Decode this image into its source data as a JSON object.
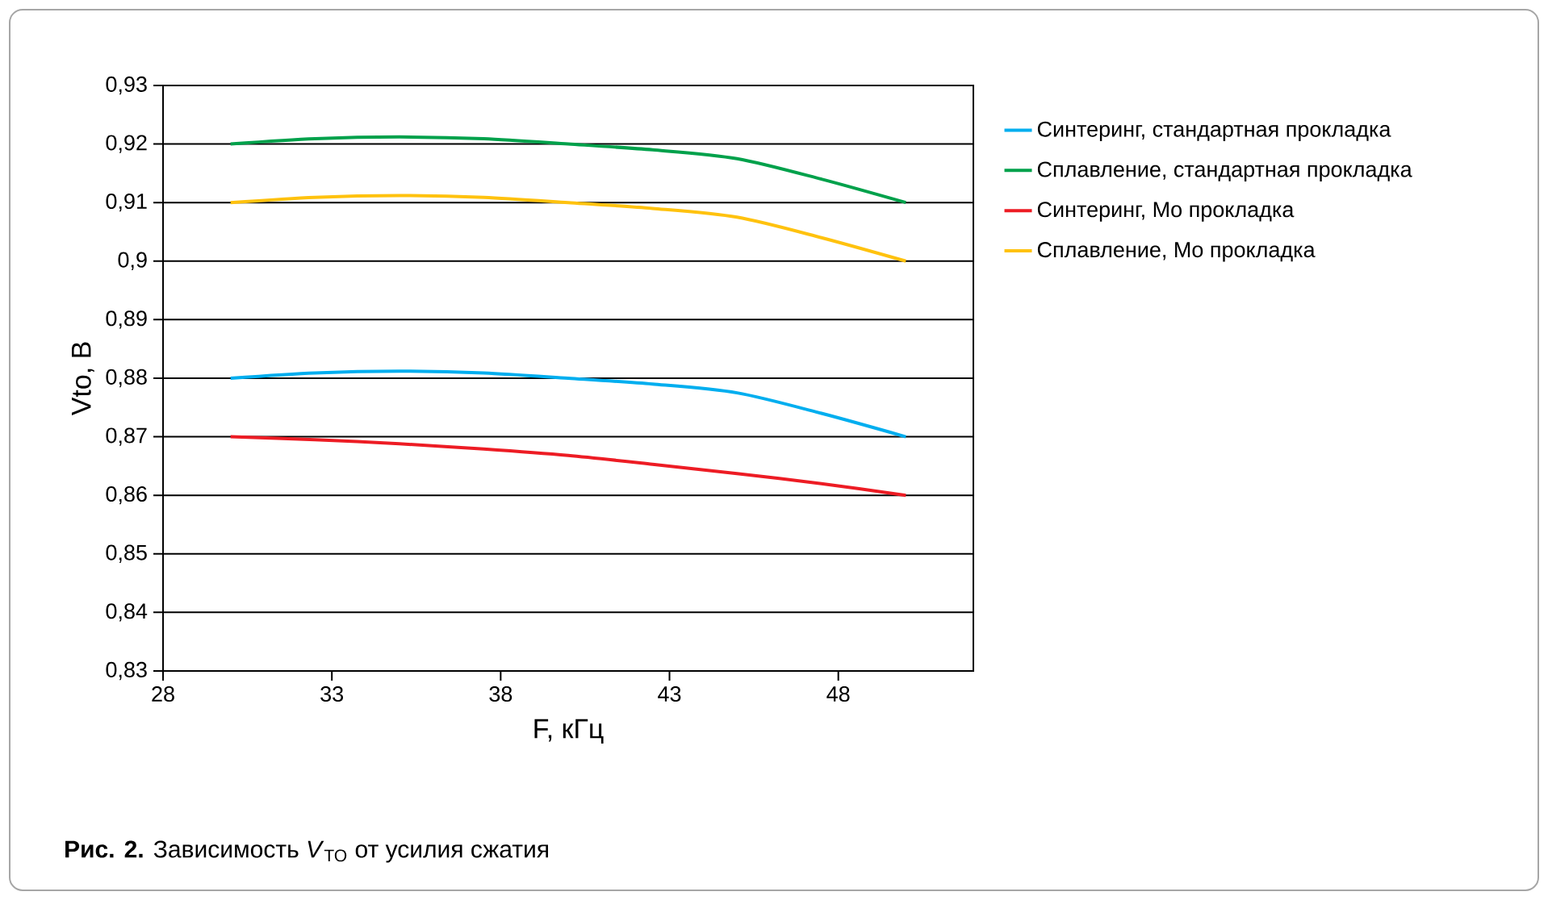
{
  "chart_data": {
    "type": "line",
    "xlabel": "F, кГц",
    "ylabel": "Vto, В",
    "annotations": [
      "**Рис. 2.** Зависимость *V*$_{TO}$ от усилия сжатия"
    ],
    "x": [
      30,
      32.5,
      35,
      37.5,
      40,
      42.5,
      45,
      47.5,
      50
    ],
    "series": [
      {
        "name": "Синтеринг, стандартная прокладка",
        "color": "#00aeef",
        "values": [
          0.88,
          0.8809,
          0.8812,
          0.8809,
          0.88,
          0.879,
          0.8775,
          0.874,
          0.87
        ]
      },
      {
        "name": "Сплавление, стандартная прокладка",
        "color": "#00a14b",
        "values": [
          0.92,
          0.9209,
          0.9212,
          0.9209,
          0.92,
          0.919,
          0.9175,
          0.914,
          0.91
        ]
      },
      {
        "name": "Синтеринг, Mo прокладка",
        "color": "#ed1c24",
        "values": [
          0.87,
          0.8695,
          0.8688,
          0.8679,
          0.8668,
          0.8653,
          0.8637,
          0.862,
          0.86
        ]
      },
      {
        "name": "Сплавление, Mo прокладка",
        "color": "#ffc20e",
        "values": [
          0.91,
          0.9109,
          0.9112,
          0.9109,
          0.91,
          0.909,
          0.9075,
          0.904,
          0.9
        ]
      }
    ],
    "xlim": [
      28,
      52
    ],
    "xticks": [
      28,
      33,
      38,
      43,
      48
    ],
    "ylim": [
      0.83,
      0.93
    ],
    "yticks": [
      {
        "value": 0.83,
        "label": "0,83"
      },
      {
        "value": 0.84,
        "label": "0,84"
      },
      {
        "value": 0.85,
        "label": "0,85"
      },
      {
        "value": 0.86,
        "label": "0,86"
      },
      {
        "value": 0.87,
        "label": "0,87"
      },
      {
        "value": 0.88,
        "label": "0,88"
      },
      {
        "value": 0.89,
        "label": "0,89"
      },
      {
        "value": 0.9,
        "label": "0,9"
      },
      {
        "value": 0.91,
        "label": "0,91"
      },
      {
        "value": 0.92,
        "label": "0,92"
      },
      {
        "value": 0.93,
        "label": "0,93"
      }
    ],
    "grid": "y",
    "legend": "right",
    "marker": "none",
    "line_style": "solid"
  }
}
